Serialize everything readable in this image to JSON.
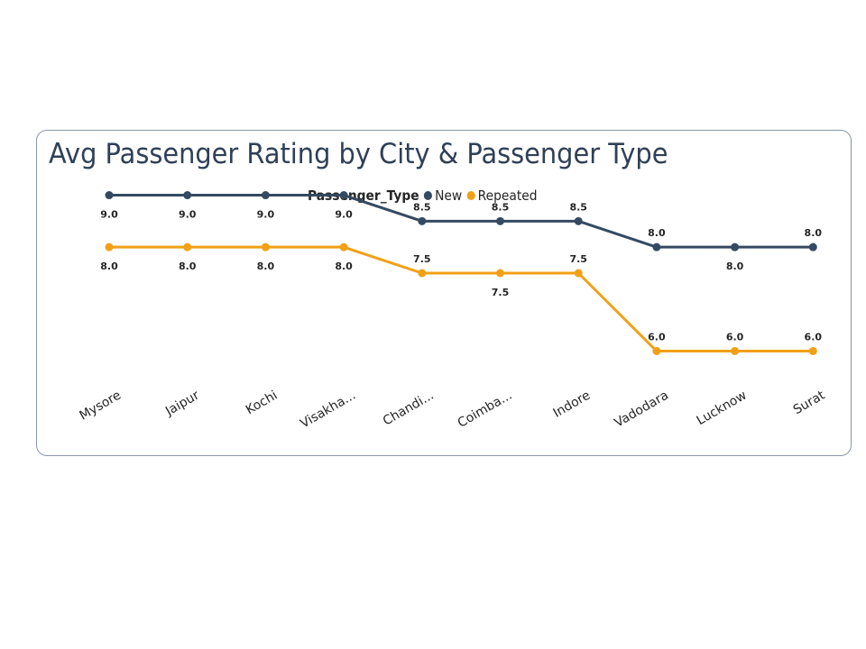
{
  "chart_data": {
    "type": "line",
    "title": "Avg Passenger Rating by City & Passenger Type",
    "legend": {
      "title": "Passenger_Type",
      "placement": "top-center"
    },
    "categories": [
      "Mysore",
      "Jaipur",
      "Kochi",
      "Visakha...",
      "Chandi...",
      "Coimba...",
      "Indore",
      "Vadodara",
      "Lucknow",
      "Surat"
    ],
    "series": [
      {
        "name": "New",
        "color": "#344a62",
        "values": [
          9.0,
          9.0,
          9.0,
          9.0,
          8.5,
          8.5,
          8.5,
          8.0,
          8.0,
          8.0
        ],
        "labels": [
          "9.0",
          "9.0",
          "9.0",
          "9.0",
          "8.5",
          "8.5",
          "8.5",
          "8.0",
          "8.0",
          "8.0"
        ]
      },
      {
        "name": "Repeated",
        "color": "#f2a016",
        "values": [
          8.0,
          8.0,
          8.0,
          8.0,
          7.5,
          7.5,
          7.5,
          6.0,
          6.0,
          6.0
        ],
        "labels": [
          "8.0",
          "8.0",
          "8.0",
          "8.0",
          "7.5",
          "7.5",
          "7.5",
          "6.0",
          "6.0",
          "6.0"
        ]
      }
    ],
    "ylim": [
      5.8,
      9.2
    ],
    "grid": false,
    "y_axis_visible": false
  }
}
